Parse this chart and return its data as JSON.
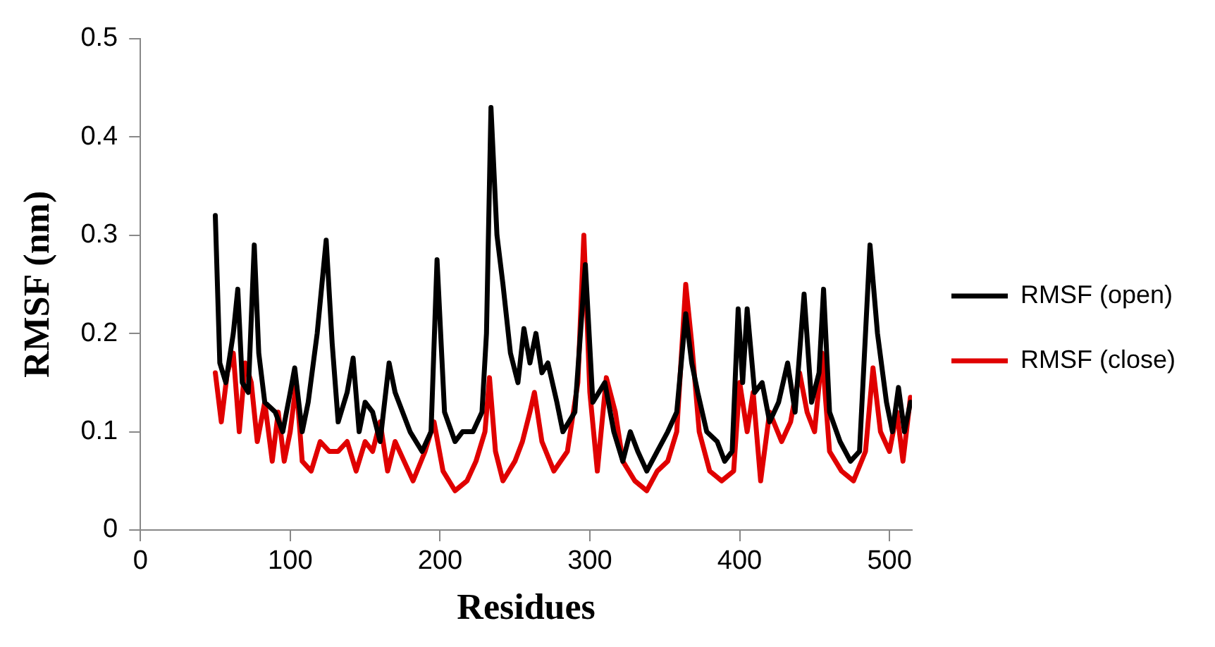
{
  "chart_data": {
    "type": "line",
    "xlabel": "Residues",
    "ylabel": "RMSF (nm)",
    "xlim": [
      0,
      515
    ],
    "xticks": [
      0,
      100,
      200,
      300,
      400,
      500
    ],
    "ylim": [
      0,
      0.5
    ],
    "yticks": [
      0,
      0.1,
      0.2,
      0.3,
      0.4,
      0.5
    ],
    "grid": false,
    "legend": "right",
    "marker": "none",
    "line_style": "solid",
    "series": [
      {
        "name": "RMSF (open)",
        "color": "#000000",
        "x": [
          50,
          53,
          57,
          62,
          65,
          68,
          72,
          76,
          79,
          83,
          90,
          95,
          100,
          103,
          108,
          112,
          118,
          124,
          128,
          132,
          138,
          142,
          146,
          150,
          155,
          160,
          166,
          170,
          180,
          188,
          194,
          198,
          203,
          210,
          215,
          222,
          228,
          231,
          234,
          238,
          242,
          247,
          252,
          256,
          260,
          264,
          268,
          272,
          278,
          282,
          290,
          297,
          302,
          310,
          316,
          322,
          327,
          332,
          338,
          345,
          352,
          358,
          364,
          368,
          372,
          378,
          385,
          390,
          395,
          399,
          402,
          405,
          410,
          415,
          420,
          426,
          432,
          437,
          443,
          448,
          453,
          456,
          460,
          467,
          474,
          480,
          487,
          492,
          498,
          502,
          506,
          510,
          514
        ],
        "values": [
          0.32,
          0.17,
          0.15,
          0.2,
          0.245,
          0.15,
          0.14,
          0.29,
          0.18,
          0.13,
          0.12,
          0.1,
          0.14,
          0.165,
          0.1,
          0.13,
          0.2,
          0.295,
          0.19,
          0.11,
          0.14,
          0.175,
          0.1,
          0.13,
          0.12,
          0.09,
          0.17,
          0.14,
          0.1,
          0.08,
          0.1,
          0.275,
          0.12,
          0.09,
          0.1,
          0.1,
          0.12,
          0.2,
          0.43,
          0.3,
          0.25,
          0.18,
          0.15,
          0.205,
          0.17,
          0.2,
          0.16,
          0.17,
          0.13,
          0.1,
          0.12,
          0.27,
          0.13,
          0.15,
          0.1,
          0.07,
          0.1,
          0.08,
          0.06,
          0.08,
          0.1,
          0.12,
          0.22,
          0.17,
          0.14,
          0.1,
          0.09,
          0.07,
          0.08,
          0.225,
          0.15,
          0.225,
          0.14,
          0.15,
          0.11,
          0.13,
          0.17,
          0.12,
          0.24,
          0.13,
          0.16,
          0.245,
          0.12,
          0.09,
          0.07,
          0.08,
          0.29,
          0.2,
          0.13,
          0.1,
          0.145,
          0.1,
          0.13
        ]
      },
      {
        "name": "RMSF (close)",
        "color": "#e00000",
        "x": [
          50,
          54,
          58,
          62,
          66,
          70,
          74,
          78,
          83,
          88,
          92,
          96,
          100,
          104,
          108,
          114,
          120,
          126,
          132,
          138,
          144,
          150,
          155,
          160,
          165,
          170,
          176,
          182,
          190,
          196,
          202,
          210,
          218,
          224,
          230,
          233,
          237,
          242,
          250,
          255,
          260,
          263,
          268,
          276,
          285,
          292,
          296,
          300,
          305,
          311,
          317,
          322,
          330,
          338,
          345,
          352,
          358,
          364,
          368,
          373,
          380,
          388,
          396,
          400,
          405,
          409,
          414,
          420,
          428,
          434,
          440,
          445,
          450,
          455,
          460,
          468,
          476,
          484,
          489,
          494,
          500,
          505,
          509,
          514
        ],
        "values": [
          0.16,
          0.11,
          0.16,
          0.18,
          0.1,
          0.17,
          0.15,
          0.09,
          0.13,
          0.07,
          0.12,
          0.07,
          0.1,
          0.15,
          0.07,
          0.06,
          0.09,
          0.08,
          0.08,
          0.09,
          0.06,
          0.09,
          0.08,
          0.11,
          0.06,
          0.09,
          0.07,
          0.05,
          0.08,
          0.11,
          0.06,
          0.04,
          0.05,
          0.07,
          0.1,
          0.155,
          0.08,
          0.05,
          0.07,
          0.09,
          0.12,
          0.14,
          0.09,
          0.06,
          0.08,
          0.15,
          0.3,
          0.14,
          0.06,
          0.155,
          0.12,
          0.07,
          0.05,
          0.04,
          0.06,
          0.07,
          0.1,
          0.25,
          0.19,
          0.1,
          0.06,
          0.05,
          0.06,
          0.15,
          0.1,
          0.14,
          0.05,
          0.12,
          0.09,
          0.11,
          0.16,
          0.12,
          0.1,
          0.18,
          0.08,
          0.06,
          0.05,
          0.08,
          0.165,
          0.1,
          0.08,
          0.12,
          0.07,
          0.135
        ]
      }
    ]
  }
}
